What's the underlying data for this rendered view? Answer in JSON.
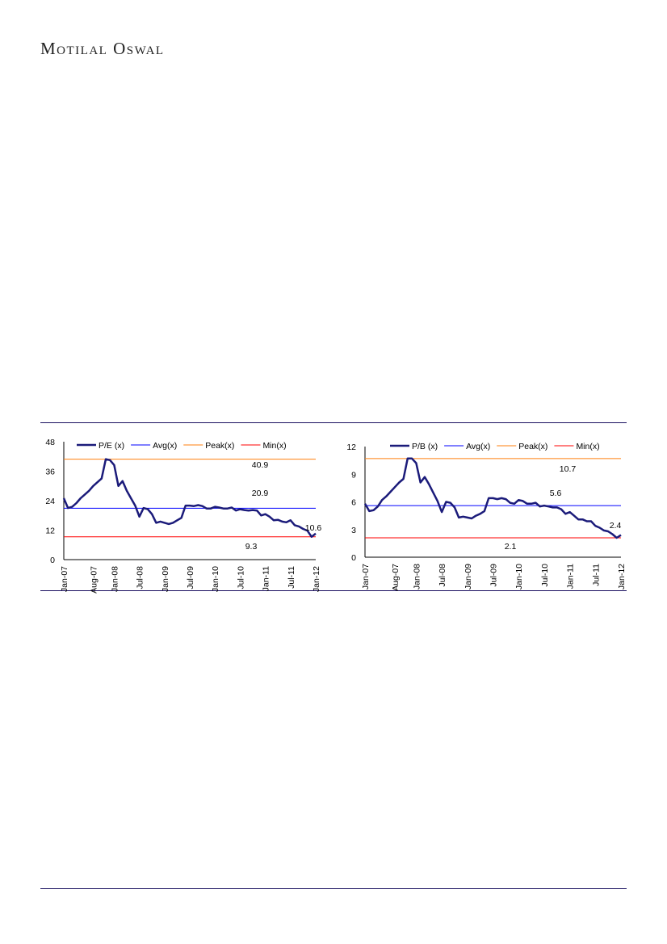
{
  "header": {
    "logo": "Motilal Oswal"
  },
  "colors": {
    "series": "#1b1b7a",
    "avg": "#0000ff",
    "peak": "#ff7f0e",
    "min": "#ff0000",
    "rule": "#1a1060"
  },
  "chart_data": [
    {
      "type": "line",
      "legend": [
        "P/E (x)",
        "Avg(x)",
        "Peak(x)",
        "Min(x)"
      ],
      "legend_position": "top",
      "ylim": [
        0,
        48
      ],
      "yticks": [
        "0",
        "12",
        "24",
        "36",
        "48"
      ],
      "xticks": [
        "Jan-07",
        "Aug-07",
        "Jan-08",
        "Jul-08",
        "Jan-09",
        "Jul-09",
        "Jan-10",
        "Jul-10",
        "Jan-11",
        "Jul-11",
        "Jan-12"
      ],
      "xtick_index": [
        0,
        7,
        12,
        18,
        24,
        30,
        36,
        42,
        48,
        54,
        60
      ],
      "values": [
        25,
        21,
        21.5,
        23,
        25,
        26.5,
        28,
        30,
        31.5,
        33,
        40.9,
        40.5,
        38.5,
        30,
        32,
        28,
        25,
        22,
        17.5,
        21,
        20.5,
        18.5,
        15,
        15.5,
        15,
        14.5,
        15,
        16,
        17,
        22,
        22,
        21.8,
        22.2,
        21.8,
        20.8,
        20.8,
        21.5,
        21.2,
        20.8,
        20.8,
        21.2,
        20,
        20.5,
        20.2,
        20,
        20.2,
        20,
        18,
        18.5,
        17.5,
        16,
        16.2,
        15.5,
        15.2,
        16,
        14,
        13.5,
        12.5,
        11.8,
        9.3,
        10.6
      ],
      "avg": 20.9,
      "peak": 40.9,
      "min": 9.3,
      "labels": {
        "peak": "40.9",
        "avg": "20.9",
        "min": "9.3",
        "last": "10.6"
      }
    },
    {
      "type": "line",
      "legend": [
        "P/B (x)",
        "Avg(x)",
        "Peak(x)",
        "Min(x)"
      ],
      "legend_position": "top",
      "ylim": [
        0,
        12
      ],
      "yticks": [
        "0",
        "3",
        "6",
        "9",
        "12"
      ],
      "xticks": [
        "Jan-07",
        "Aug-07",
        "Jan-08",
        "Jul-08",
        "Jan-09",
        "Jul-09",
        "Jan-10",
        "Jul-10",
        "Jan-11",
        "Jul-11",
        "Jan-12"
      ],
      "xtick_index": [
        0,
        7,
        12,
        18,
        24,
        30,
        36,
        42,
        48,
        54,
        60
      ],
      "values": [
        5.8,
        5.0,
        5.1,
        5.5,
        6.2,
        6.6,
        7.1,
        7.6,
        8.1,
        8.5,
        10.7,
        10.7,
        10.2,
        8.1,
        8.7,
        7.9,
        7.0,
        6.1,
        4.9,
        6.0,
        5.9,
        5.4,
        4.3,
        4.4,
        4.3,
        4.2,
        4.5,
        4.7,
        5.0,
        6.4,
        6.4,
        6.3,
        6.4,
        6.3,
        5.9,
        5.8,
        6.2,
        6.1,
        5.8,
        5.8,
        5.9,
        5.5,
        5.6,
        5.5,
        5.4,
        5.4,
        5.2,
        4.7,
        4.9,
        4.5,
        4.1,
        4.1,
        3.9,
        3.9,
        3.4,
        3.2,
        2.9,
        2.8,
        2.5,
        2.1,
        2.4
      ],
      "avg": 5.6,
      "peak": 10.7,
      "min": 2.1,
      "labels": {
        "peak": "10.7",
        "avg": "5.6",
        "min": "2.1",
        "last": "2.4"
      }
    }
  ]
}
